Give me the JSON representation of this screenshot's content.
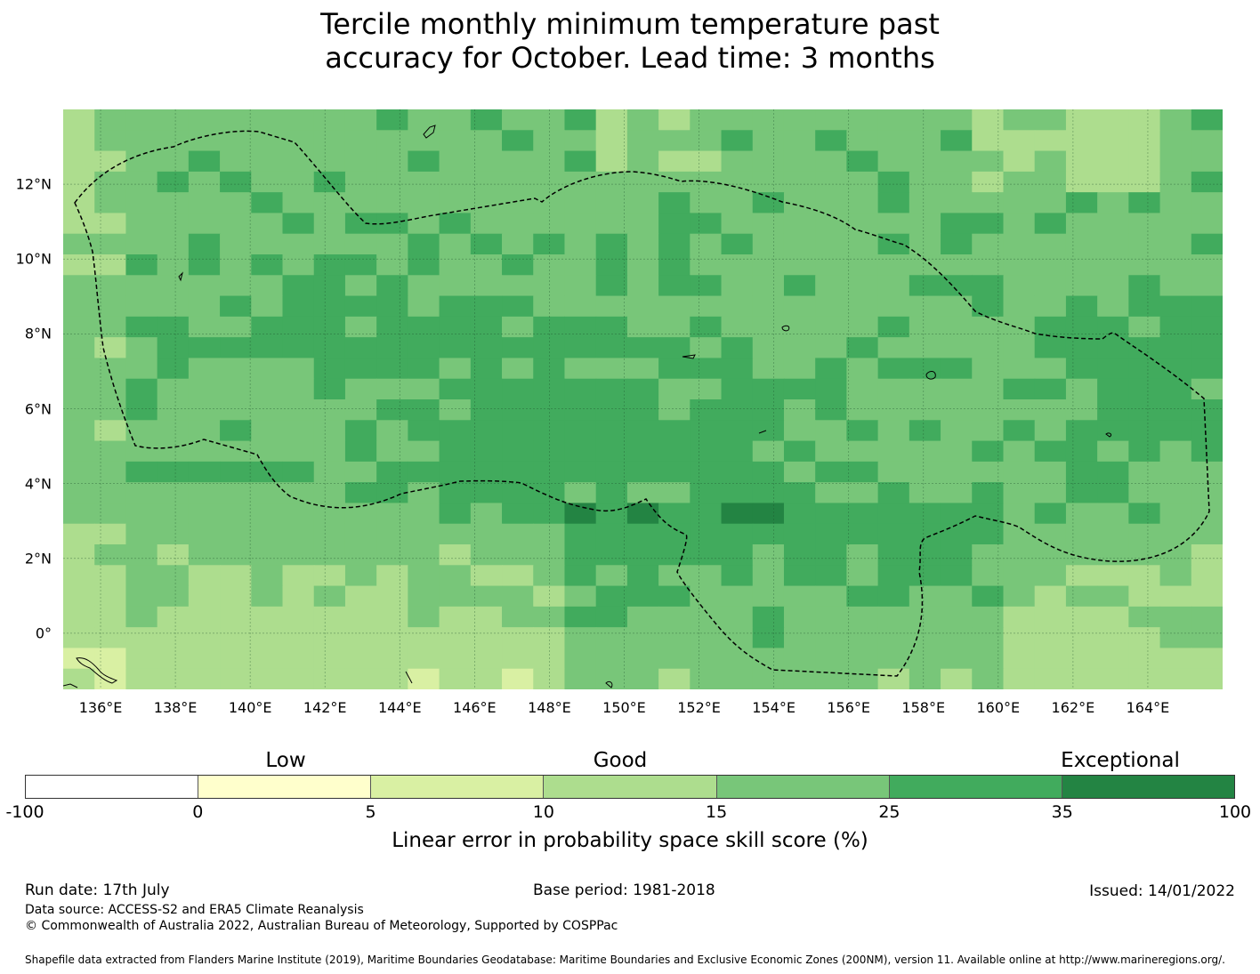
{
  "title": {
    "line1": "Tercile monthly minimum temperature past",
    "line2": "accuracy for October. Lead time: 3 months"
  },
  "map": {
    "lat_labels": [
      "12°N",
      "10°N",
      "8°N",
      "6°N",
      "4°N",
      "2°N",
      "0°"
    ],
    "lon_labels": [
      "136°E",
      "138°E",
      "140°E",
      "142°E",
      "144°E",
      "146°E",
      "148°E",
      "150°E",
      "152°E",
      "154°E",
      "156°E",
      "158°E",
      "160°E",
      "162°E",
      "164°E"
    ],
    "boundary_style": "dashed",
    "lon_range": [
      135,
      166
    ],
    "lat_range": [
      -1.5,
      14
    ]
  },
  "colorbar": {
    "ticks": [
      "-100",
      "0",
      "5",
      "10",
      "15",
      "25",
      "35",
      "100"
    ],
    "categories": [
      "Low",
      "Good",
      "Exceptional"
    ],
    "label": "Linear error in probability space skill score (%)",
    "colors": [
      "#ffffff",
      "#ffffcc",
      "#d9f0a3",
      "#addd8e",
      "#78c679",
      "#41ab5d",
      "#238443"
    ]
  },
  "footer": {
    "run_date": "Run date: 17th July",
    "base_period": "Base period: 1981-2018",
    "issued": "Issued: 14/01/2022",
    "data_source": "Data source: ACCESS-S2 and ERA5 Climate Reanalysis",
    "copyright": "© Commonwealth of Australia 2022, Australian Bureau of Meteorology, Supported by COSPPac",
    "shapefile": "Shapefile data extracted from Flanders Marine Institute (2019), Maritime Boundaries Geodatabase: Maritime Boundaries and Exclusive Economic Zones (200NM), version 11. Available online at http://www.marineregions.org/."
  }
}
